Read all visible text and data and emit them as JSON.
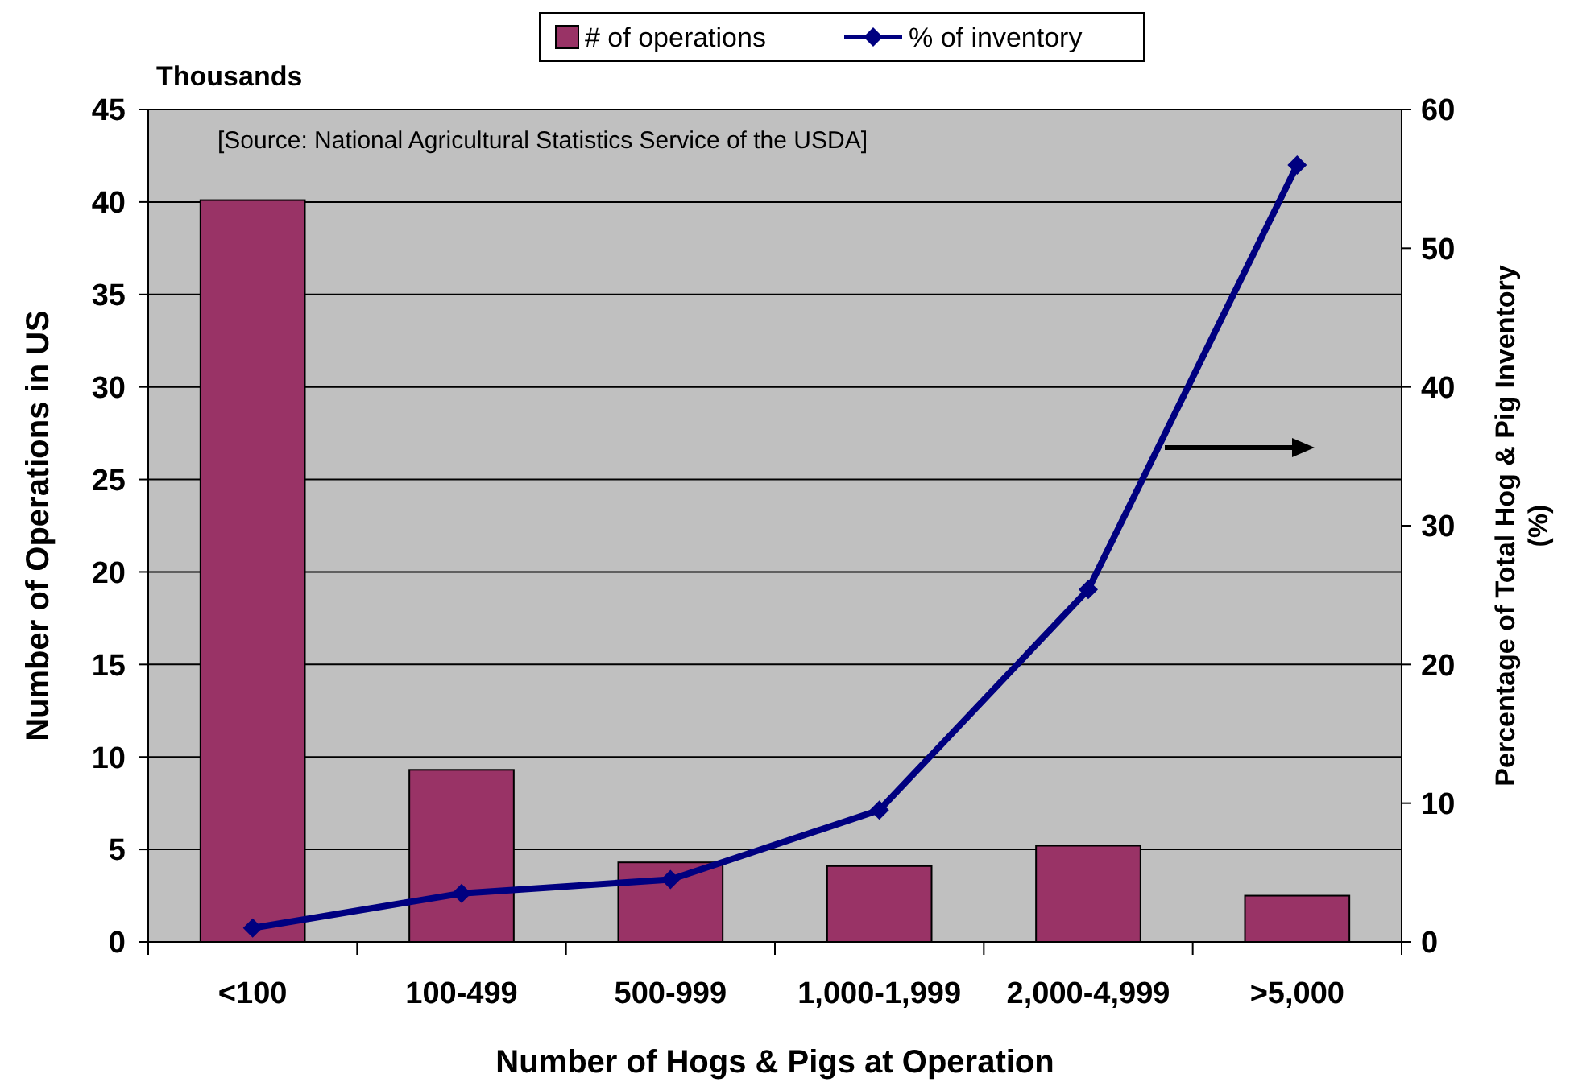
{
  "chart_data": {
    "type": "bar",
    "categories": [
      "<100",
      "100-499",
      "500-999",
      "1,000-1,999",
      "2,000-4,999",
      ">5,000"
    ],
    "series": [
      {
        "name": "# of operations",
        "color": "#993366",
        "values": [
          40.1,
          9.3,
          4.3,
          4.1,
          5.2,
          2.5
        ]
      },
      {
        "name": "% of inventory",
        "type": "line",
        "axis": "y2",
        "color": "#000080",
        "values": [
          1.0,
          3.5,
          4.5,
          9.5,
          25.4,
          56.0
        ]
      }
    ],
    "xlabel": "Number of Hogs & Pigs at Operation",
    "ylabel": "Number of Operations in US",
    "y2label": "Percentage of Total Hog & Pig Inventory (%)",
    "annotations": [
      "Thousands",
      "[Source: National Agricultural Statistics Service of the USDA]"
    ],
    "ylim": [
      0,
      45
    ],
    "yticks": [
      0,
      5,
      10,
      15,
      20,
      25,
      30,
      35,
      40,
      45
    ],
    "y2lim": [
      0,
      60
    ],
    "y2ticks": [
      0,
      10,
      20,
      30,
      40,
      50,
      60
    ],
    "grid": "y",
    "legend": "top",
    "marker": "diamond",
    "line_style": "solid"
  }
}
